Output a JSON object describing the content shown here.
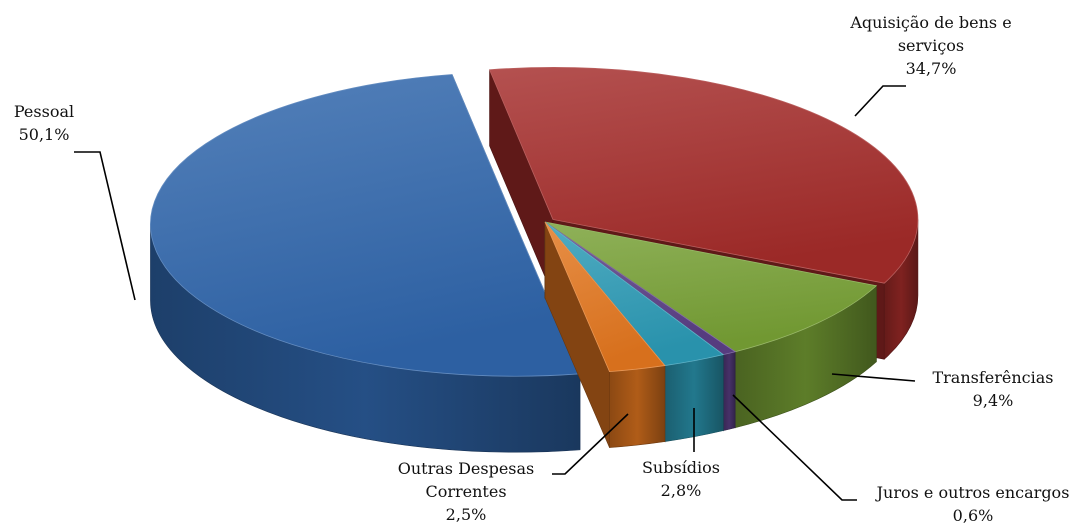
{
  "chart_data": {
    "type": "pie",
    "style": "3d-exploded",
    "title": "",
    "legend": "none",
    "slices": [
      {
        "name_lines": [
          "Aquisição de bens e",
          "serviços"
        ],
        "name": "Aquisição de bens e serviços",
        "value": 34.7,
        "label": "34,7%",
        "color": "#a32b29"
      },
      {
        "name_lines": [
          "Transferências"
        ],
        "name": "Transferências",
        "value": 9.4,
        "label": "9,4%",
        "color": "#77a035"
      },
      {
        "name_lines": [
          "Juros e outros encargos"
        ],
        "name": "Juros e outros encargos",
        "value": 0.6,
        "label": "0,6%",
        "color": "#5b3f86"
      },
      {
        "name_lines": [
          "Subsídios"
        ],
        "name": "Subsídios",
        "value": 2.8,
        "label": "2,8%",
        "color": "#2b9ab5"
      },
      {
        "name_lines": [
          "Outras Despesas",
          "Correntes"
        ],
        "name": "Outras Despesas Correntes",
        "value": 2.5,
        "label": "2,5%",
        "color": "#e2761f"
      },
      {
        "name_lines": [
          "Pessoal"
        ],
        "name": "Pessoal",
        "value": 50.1,
        "label": "50,1%",
        "color": "#2f65ab"
      }
    ]
  }
}
